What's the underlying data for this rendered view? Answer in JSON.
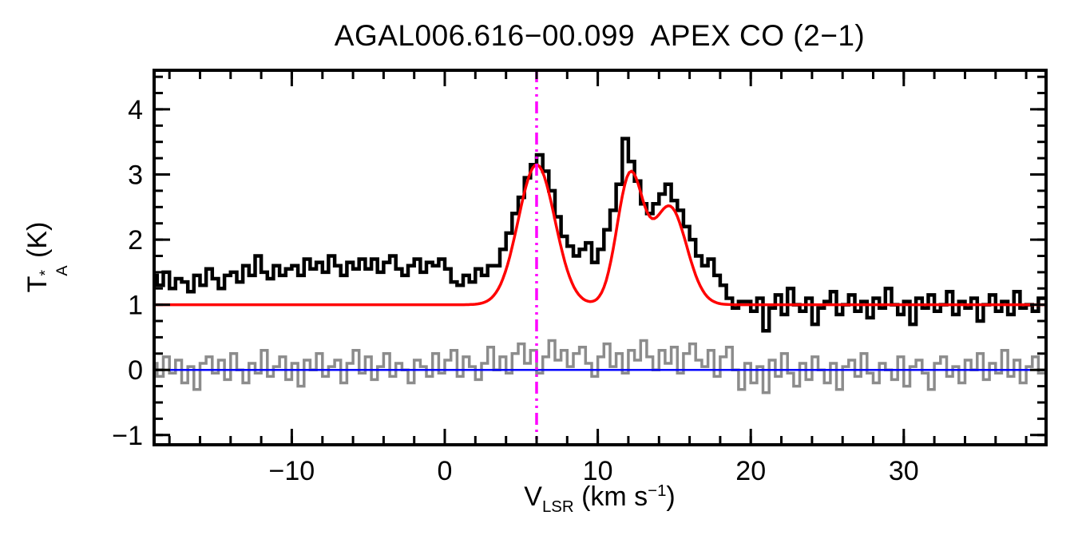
{
  "title": "AGAL006.616−00.099  APEX CO (2−1)",
  "chart_data": {
    "type": "line",
    "subtype": "spectrum-histogram-with-gaussian-fit",
    "title": "AGAL006.616−00.099  APEX CO (2−1)",
    "xlabel": {
      "base": "V",
      "sub": "LSR",
      "mid": " (km s",
      "sup": "−1",
      "end": ")"
    },
    "ylabel": {
      "base": "T",
      "sup": "*",
      "sub": "A",
      "end": " (K)"
    },
    "xlim": [
      -19,
      39.3
    ],
    "ylim": [
      -1.15,
      4.6
    ],
    "xticks": [
      -10,
      0,
      10,
      20,
      30
    ],
    "yticks": [
      -1,
      0,
      1,
      2,
      3,
      4
    ],
    "x_minor_step": 2,
    "y_minor_step": 0.25,
    "grid": false,
    "legend": null,
    "colors": {
      "axes": "#000000",
      "spectrum": "#000000",
      "model": "#ff0000",
      "residual": "#8c8c8c",
      "zero_line": "#0000ff",
      "velocity_marker": "#ff00ff"
    },
    "spectrum": {
      "name": "observed-spectrum",
      "x_start": -19.0,
      "dx": 0.4,
      "values": [
        1.45,
        1.3,
        1.5,
        1.25,
        1.4,
        1.35,
        1.2,
        1.45,
        1.3,
        1.55,
        1.4,
        1.25,
        1.45,
        1.5,
        1.35,
        1.6,
        1.45,
        1.75,
        1.5,
        1.4,
        1.6,
        1.45,
        1.55,
        1.6,
        1.45,
        1.7,
        1.55,
        1.65,
        1.5,
        1.75,
        1.6,
        1.45,
        1.65,
        1.55,
        1.7,
        1.55,
        1.7,
        1.5,
        1.65,
        1.75,
        1.55,
        1.45,
        1.6,
        1.7,
        1.5,
        1.65,
        1.6,
        1.7,
        1.55,
        1.35,
        1.3,
        1.45,
        1.35,
        1.55,
        1.45,
        1.6,
        1.6,
        1.85,
        2.1,
        2.4,
        2.65,
        2.95,
        3.15,
        3.3,
        3.05,
        2.75,
        2.35,
        2.05,
        1.9,
        1.75,
        1.85,
        1.95,
        1.65,
        1.85,
        2.15,
        2.45,
        2.85,
        3.55,
        3.2,
        2.9,
        2.55,
        2.4,
        2.55,
        2.7,
        2.85,
        2.6,
        2.45,
        2.2,
        2.0,
        1.75,
        1.6,
        1.7,
        1.45,
        1.3,
        1.1,
        0.95,
        1.05,
        1.05,
        0.9,
        1.1,
        0.6,
        0.95,
        1.15,
        0.85,
        1.25,
        1.0,
        0.9,
        1.1,
        0.7,
        0.95,
        1.05,
        1.2,
        0.85,
        1.0,
        1.15,
        0.9,
        1.05,
        0.8,
        1.1,
        0.95,
        1.25,
        1.0,
        0.85,
        1.05,
        0.7,
        1.1,
        0.95,
        1.15,
        0.9,
        1.0,
        1.2,
        0.85,
        1.05,
        0.95,
        1.1,
        0.75,
        1.0,
        1.15,
        0.9,
        1.05,
        0.85,
        1.2,
        0.95,
        1.0,
        0.9,
        1.1
      ]
    },
    "residual": {
      "name": "residual-spectrum",
      "x_start": -19.0,
      "dx": 0.4,
      "values": [
        0.1,
        -0.1,
        0.2,
        -0.05,
        0.15,
        -0.2,
        0.05,
        -0.3,
        0.1,
        0.2,
        -0.05,
        0.15,
        -0.15,
        0.25,
        0.0,
        -0.2,
        0.1,
        -0.05,
        0.3,
        -0.1,
        0.05,
        0.2,
        -0.15,
        0.1,
        -0.25,
        0.15,
        0.0,
        0.25,
        -0.1,
        0.05,
        0.15,
        -0.2,
        0.1,
        0.3,
        -0.05,
        0.2,
        -0.15,
        0.05,
        0.25,
        -0.1,
        0.1,
        0.0,
        -0.2,
        0.15,
        0.05,
        -0.1,
        0.25,
        -0.05,
        0.15,
        0.3,
        -0.1,
        0.2,
        0.05,
        -0.15,
        0.1,
        0.35,
        0.0,
        0.2,
        -0.05,
        0.25,
        0.4,
        0.1,
        0.3,
        -0.05,
        0.2,
        0.45,
        0.15,
        0.3,
        0.05,
        0.25,
        0.35,
        0.1,
        -0.1,
        0.2,
        0.4,
        0.05,
        0.25,
        -0.05,
        0.3,
        0.15,
        0.45,
        0.2,
        0.0,
        0.3,
        0.1,
        0.35,
        -0.05,
        0.25,
        0.4,
        0.15,
        0.05,
        0.3,
        -0.1,
        0.2,
        0.35,
        0.0,
        -0.3,
        0.1,
        -0.2,
        0.05,
        -0.35,
        0.15,
        -0.1,
        0.25,
        -0.05,
        -0.25,
        0.1,
        -0.15,
        0.2,
        0.0,
        -0.2,
        0.1,
        -0.3,
        0.05,
        0.15,
        -0.1,
        0.25,
        -0.05,
        -0.2,
        0.1,
        0.0,
        -0.15,
        0.2,
        -0.25,
        0.05,
        0.15,
        -0.05,
        -0.3,
        0.1,
        0.2,
        -0.1,
        0.05,
        -0.2,
        0.15,
        0.0,
        0.25,
        -0.15,
        0.1,
        -0.05,
        0.3,
        -0.1,
        0.15,
        -0.2,
        0.05,
        0.2,
        -0.05
      ]
    },
    "model_fit": {
      "name": "gaussian-fit",
      "baseline": 1.0,
      "components": [
        {
          "center": 6.0,
          "amplitude": 2.15,
          "sigma": 1.2
        },
        {
          "center": 12.1,
          "amplitude": 1.95,
          "sigma": 0.85
        },
        {
          "center": 14.7,
          "amplitude": 1.5,
          "sigma": 1.1
        }
      ]
    },
    "zero_line": {
      "y": 0
    },
    "velocity_marker": {
      "x": 6.0,
      "style": "dash-dot-dot"
    }
  }
}
